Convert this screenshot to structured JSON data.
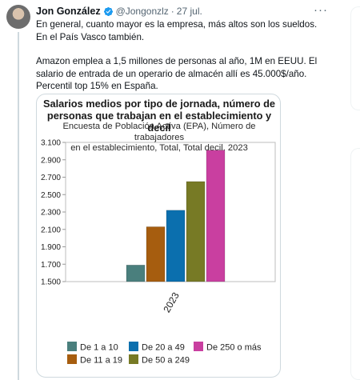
{
  "tweet": {
    "author_name": "Jon González",
    "handle": "@Jongonzlz",
    "separator": "·",
    "date": "27 jul.",
    "more": "···",
    "paragraph_1": "En general, cuanto mayor es la empresa, más altos son los sueldos. En el País Vasco también.",
    "paragraph_2": "Amazon emplea a 1,5 millones de personas al año, 1M en EEUU. El salario de entrada de un operario de almacén allí es 45.000$/año. Percentil top 15% en España."
  },
  "icons": {
    "verified": "verified-badge-icon",
    "more": "more-options-icon",
    "avatar": "user-avatar"
  },
  "colors": {
    "verified_blue": "#1d9bf0"
  },
  "chart_data": {
    "type": "bar",
    "title": "Salarios medios por tipo de jornada, número de personas que trabajan en el establecimiento y decil",
    "title_lines": [
      "Salarios medios por tipo de jornada, número de",
      "personas que trabajan en el establecimiento y decil"
    ],
    "subtitle": "Encuesta de Población Activa (EPA), Número de trabajadores en el establecimiento, Total, Total decil, 2023",
    "subtitle_lines": [
      "Encuesta de Población Activa (EPA), Número de trabajadores",
      "en el establecimiento, Total, Total decil, 2023"
    ],
    "categories": [
      "2023"
    ],
    "ylim": [
      1500,
      3100
    ],
    "yticks": [
      1500,
      1700,
      1900,
      2100,
      2300,
      2500,
      2700,
      2900,
      3100
    ],
    "ytick_labels": [
      "1.500",
      "1.700",
      "1.900",
      "2.100",
      "2.300",
      "2.500",
      "2.700",
      "2.900",
      "3.100"
    ],
    "grid": false,
    "legend_position": "bottom",
    "series": [
      {
        "name": "De 1 a 10",
        "values": [
          1690
        ],
        "color": "#4a7f7d"
      },
      {
        "name": "De 11 a 19",
        "values": [
          2130
        ],
        "color": "#a65d0f"
      },
      {
        "name": "De 20 a 49",
        "values": [
          2320
        ],
        "color": "#0b6fae"
      },
      {
        "name": "De 50 a 249",
        "values": [
          2650
        ],
        "color": "#777a25"
      },
      {
        "name": "De 250 o más",
        "values": [
          3010
        ],
        "color": "#c93fa0"
      }
    ]
  }
}
